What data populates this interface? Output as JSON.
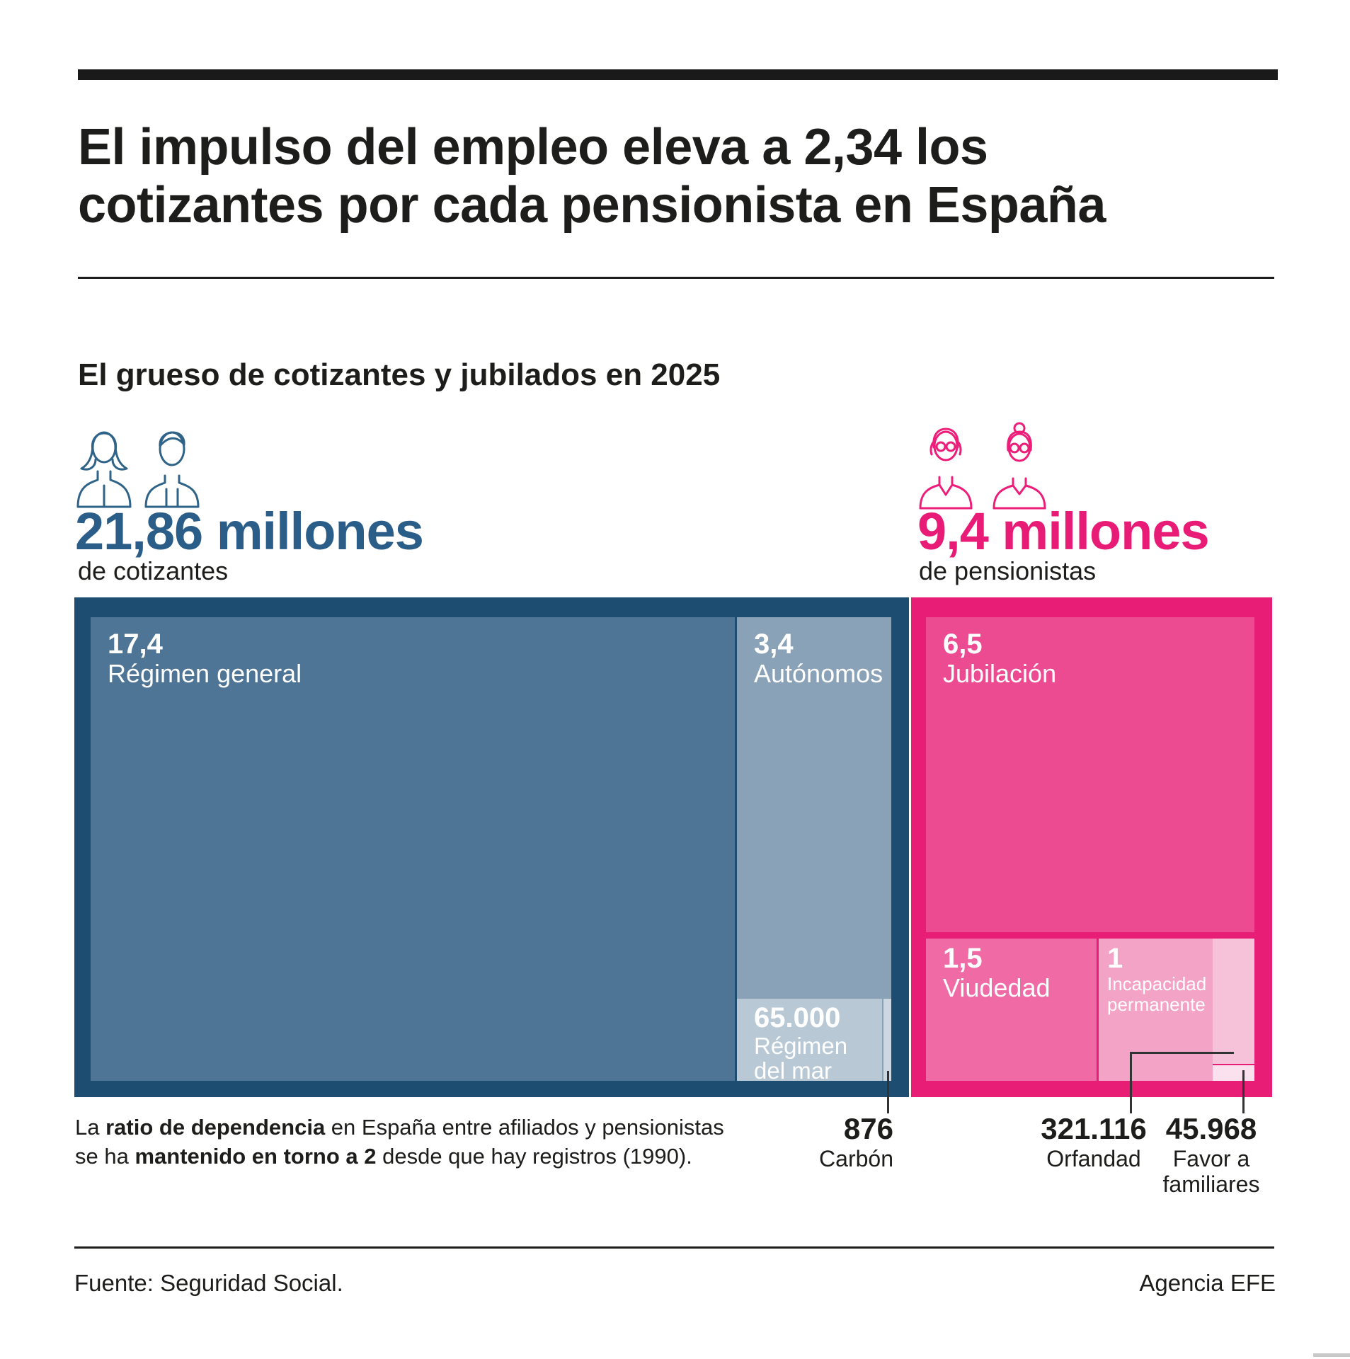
{
  "header": {
    "title_line1": "El impulso del empleo eleva a 2,34 los",
    "title_line2": "cotizantes por cada pensionista en España"
  },
  "chart_data": {
    "type": "treemap",
    "title": "El grueso de cotizantes y jubilados en 2025",
    "groups": [
      {
        "id": "cotizantes",
        "total_label": "21,86 millones",
        "total_sublabel": "de cotizantes",
        "total_value_millions": 21.86,
        "accent_color": "#2a5d88",
        "container_color": "#1d4d70",
        "items": [
          {
            "label": "Régimen general",
            "value_label": "17,4",
            "value_millions": 17.4,
            "color": "#4f7596"
          },
          {
            "label": "Autónomos",
            "value_label": "3,4",
            "value_millions": 3.4,
            "color": "#89a2b7"
          },
          {
            "label": "Régimen del mar",
            "value_label": "65.000",
            "value_millions": 0.065,
            "color": "#b8c8d5"
          },
          {
            "label": "Carbón",
            "value_label": "876",
            "value_millions": 0.000876,
            "color": "#ccd8e1"
          }
        ]
      },
      {
        "id": "pensionistas",
        "total_label": "9,4 millones",
        "total_sublabel": "de pensionistas",
        "total_value_millions": 9.4,
        "accent_color": "#e81c77",
        "container_color": "#e81d75",
        "items": [
          {
            "label": "Jubilación",
            "value_label": "6,5",
            "value_millions": 6.5,
            "color": "#ed4b91"
          },
          {
            "label": "Viudedad",
            "value_label": "1,5",
            "value_millions": 1.5,
            "color": "#f06ba6"
          },
          {
            "label": "Incapacidad permanente",
            "value_label": "1",
            "value_millions": 1,
            "color": "#f3a3c6"
          },
          {
            "label": "Orfandad",
            "value_label": "321.116",
            "value_millions": 0.321116,
            "color": "#f6c2d9"
          },
          {
            "label": "Favor a familiares",
            "value_label": "45.968",
            "value_millions": 0.045968,
            "color": "#fbe1ee"
          }
        ]
      }
    ]
  },
  "icons": {
    "contributors": [
      "female-worker-icon",
      "male-worker-icon"
    ],
    "pensioners": [
      "elderly-man-icon",
      "elderly-woman-icon"
    ]
  },
  "note": {
    "line1_parts": [
      {
        "t": "La ",
        "b": 0
      },
      {
        "t": "ratio de dependencia",
        "b": 1
      },
      {
        "t": " en España entre afiliados y pensionistas",
        "b": 0
      }
    ],
    "line2_parts": [
      {
        "t": "se ha ",
        "b": 0
      },
      {
        "t": "mantenido en torno a 2",
        "b": 1
      },
      {
        "t": " desde que hay registros (1990).",
        "b": 0
      }
    ]
  },
  "footer": {
    "source": "Fuente: Seguridad Social.",
    "credit": "Agencia EFE"
  }
}
